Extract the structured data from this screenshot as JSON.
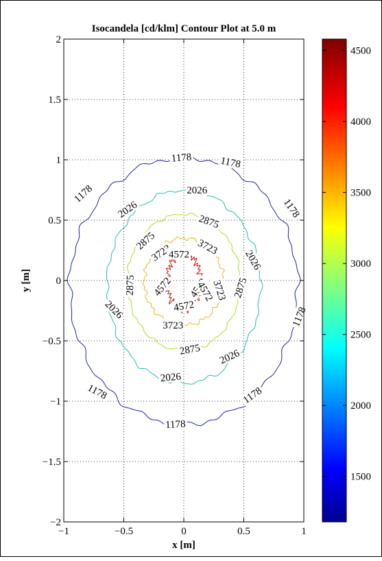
{
  "chart_data": {
    "type": "contour",
    "title": "Isocandela [cd/klm] Contour Plot at 5.0 m",
    "xlabel": "x [m]",
    "ylabel": "y [m]",
    "xlim": [
      -1,
      1
    ],
    "ylim": [
      -2,
      2
    ],
    "x_ticks": [
      -1,
      -0.5,
      0,
      0.5,
      1
    ],
    "x_tick_labels": [
      "−1",
      "−0.5",
      "0",
      "0.5",
      "1"
    ],
    "y_ticks": [
      -2,
      -1.5,
      -1,
      -0.5,
      0,
      0.5,
      1,
      1.5,
      2
    ],
    "y_tick_labels": [
      "−2",
      "−1.5",
      "−1",
      "−0.5",
      "0",
      "0.5",
      "1",
      "1.5",
      "2"
    ],
    "grid": true,
    "colorbar": {
      "range": [
        1180,
        4580
      ],
      "ticks": [
        1500,
        2000,
        2500,
        3000,
        3500,
        4000,
        4500
      ],
      "tick_labels": [
        "1500",
        "2000",
        "2500",
        "3000",
        "3500",
        "4000",
        "4500"
      ],
      "colormap": "jet"
    },
    "levels": [
      {
        "value": 1178,
        "label": "1178",
        "color": "#1c22a8",
        "x_half_width": 0.95,
        "y_top": 1.02,
        "y_bottom": -1.19,
        "y_center": -0.05,
        "wobble": 0.025,
        "roughness": 1
      },
      {
        "value": 2026,
        "label": "2026",
        "color": "#1dbfb0",
        "x_half_width": 0.64,
        "y_top": 0.75,
        "y_bottom": -0.85,
        "y_center": -0.05,
        "wobble": 0.025,
        "roughness": 1
      },
      {
        "value": 2875,
        "label": "2875",
        "color": "#a5e21e",
        "x_half_width": 0.47,
        "y_top": 0.55,
        "y_bottom": -0.58,
        "y_center": -0.01,
        "wobble": 0.025,
        "roughness": 1
      },
      {
        "value": 3723,
        "label": "3723",
        "color": "#f0b414",
        "x_half_width": 0.33,
        "y_top": 0.35,
        "y_bottom": -0.37,
        "y_center": -0.01,
        "wobble": 0.03,
        "roughness": 1.6
      },
      {
        "value": 4572,
        "label": "4572",
        "color": "#c61010",
        "x_half_width": 0.14,
        "y_top": 0.22,
        "y_bottom": -0.24,
        "y_center": 0.0,
        "wobble": 0.04,
        "roughness": 3
      }
    ],
    "contour_labels": [
      {
        "text": "1178",
        "x": -0.02,
        "y": 1.02,
        "angle": -5
      },
      {
        "text": "1178",
        "x": 0.39,
        "y": 0.98,
        "angle": 12
      },
      {
        "text": "1178",
        "x": -0.84,
        "y": 0.72,
        "angle": -42
      },
      {
        "text": "1178",
        "x": 0.9,
        "y": 0.6,
        "angle": 55
      },
      {
        "text": "1178",
        "x": 0.96,
        "y": -0.3,
        "angle": -68
      },
      {
        "text": "1178",
        "x": -0.72,
        "y": -0.92,
        "angle": 28
      },
      {
        "text": "1178",
        "x": 0.57,
        "y": -0.95,
        "angle": -35
      },
      {
        "text": "1178",
        "x": -0.07,
        "y": -1.19,
        "angle": -3
      },
      {
        "text": "2026",
        "x": -0.47,
        "y": 0.59,
        "angle": -35
      },
      {
        "text": "2026",
        "x": 0.11,
        "y": 0.75,
        "angle": 0
      },
      {
        "text": "2026",
        "x": 0.58,
        "y": 0.17,
        "angle": 60
      },
      {
        "text": "2026",
        "x": -0.58,
        "y": -0.24,
        "angle": 45
      },
      {
        "text": "2026",
        "x": 0.38,
        "y": -0.63,
        "angle": -25
      },
      {
        "text": "2026",
        "x": -0.11,
        "y": -0.8,
        "angle": -5
      },
      {
        "text": "2875",
        "x": -0.32,
        "y": 0.33,
        "angle": -42
      },
      {
        "text": "2875",
        "x": 0.21,
        "y": 0.49,
        "angle": 20
      },
      {
        "text": "2875",
        "x": -0.45,
        "y": -0.04,
        "angle": -88
      },
      {
        "text": "2875",
        "x": 0.47,
        "y": -0.06,
        "angle": -72
      },
      {
        "text": "2875",
        "x": 0.05,
        "y": -0.57,
        "angle": -10
      },
      {
        "text": "3723",
        "x": -0.19,
        "y": 0.23,
        "angle": -35
      },
      {
        "text": "3723",
        "x": 0.2,
        "y": 0.28,
        "angle": 28
      },
      {
        "text": "3723",
        "x": 0.3,
        "y": -0.08,
        "angle": 72
      },
      {
        "text": "3723",
        "x": -0.09,
        "y": -0.37,
        "angle": 0
      },
      {
        "text": "4572",
        "x": -0.04,
        "y": 0.22,
        "angle": 0
      },
      {
        "text": "4572",
        "x": 0.12,
        "y": -0.06,
        "angle": -55
      },
      {
        "text": "4572",
        "x": -0.18,
        "y": -0.05,
        "angle": -50
      },
      {
        "text": "4572",
        "x": 0.0,
        "y": -0.21,
        "angle": -10
      },
      {
        "text": "4572",
        "x": 0.18,
        "y": -0.09,
        "angle": 60
      }
    ]
  }
}
